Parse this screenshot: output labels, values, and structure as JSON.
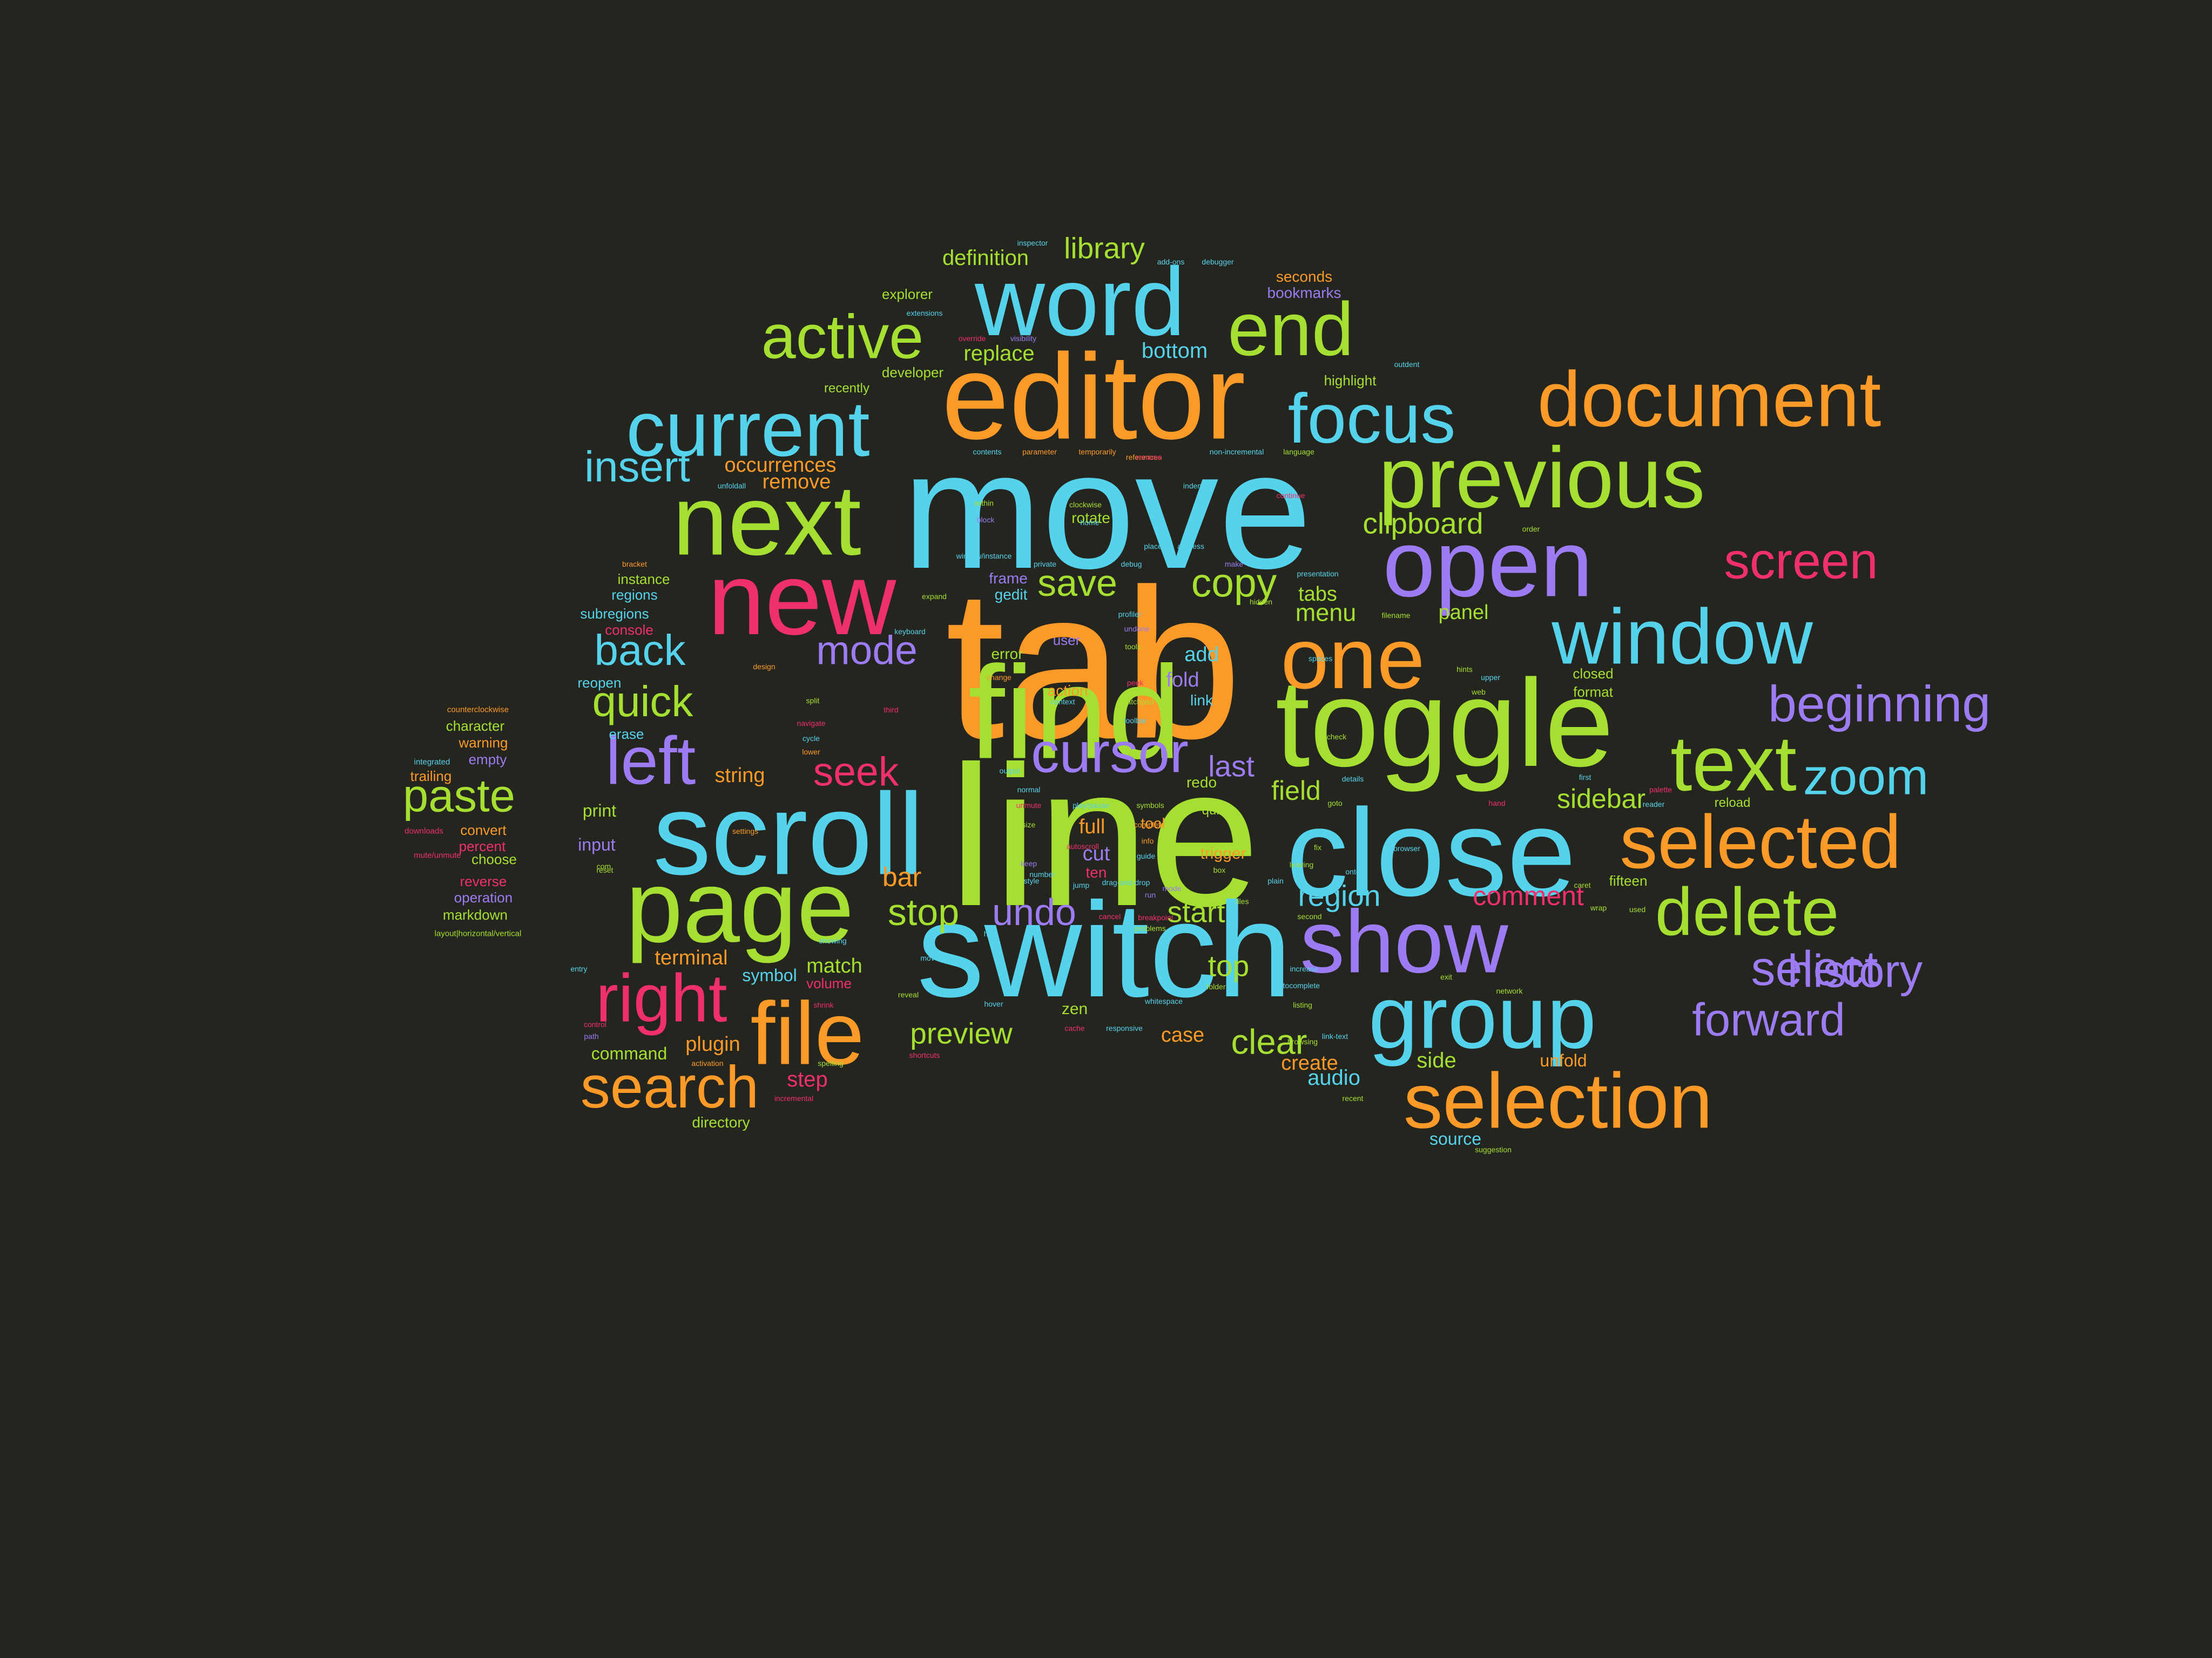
{
  "palette": {
    "background": "#252520",
    "cyan": "#56d3ec",
    "orange": "#fb9a28",
    "lime": "#a5df31",
    "purple": "#9d7bf3",
    "pink": "#f0306c"
  },
  "words": [
    {
      "text": "tab",
      "color": "orange"
    },
    {
      "text": "line",
      "color": "lime"
    },
    {
      "text": "move",
      "color": "cyan"
    },
    {
      "text": "switch",
      "color": "cyan"
    },
    {
      "text": "editor",
      "color": "orange"
    },
    {
      "text": "find",
      "color": "lime"
    },
    {
      "text": "toggle",
      "color": "lime"
    },
    {
      "text": "close",
      "color": "cyan"
    },
    {
      "text": "scroll",
      "color": "cyan"
    },
    {
      "text": "page",
      "color": "lime"
    },
    {
      "text": "new",
      "color": "pink"
    },
    {
      "text": "next",
      "color": "lime"
    },
    {
      "text": "word",
      "color": "cyan"
    },
    {
      "text": "open",
      "color": "purple"
    },
    {
      "text": "one",
      "color": "orange"
    },
    {
      "text": "show",
      "color": "purple"
    },
    {
      "text": "group",
      "color": "cyan"
    },
    {
      "text": "previous",
      "color": "lime"
    },
    {
      "text": "current",
      "color": "cyan"
    },
    {
      "text": "document",
      "color": "orange"
    },
    {
      "text": "selection",
      "color": "orange"
    },
    {
      "text": "window",
      "color": "cyan"
    },
    {
      "text": "selected",
      "color": "orange"
    },
    {
      "text": "text",
      "color": "lime"
    },
    {
      "text": "end",
      "color": "lime"
    },
    {
      "text": "focus",
      "color": "cyan"
    },
    {
      "text": "file",
      "color": "orange"
    },
    {
      "text": "delete",
      "color": "lime"
    },
    {
      "text": "right",
      "color": "pink"
    },
    {
      "text": "search",
      "color": "orange"
    },
    {
      "text": "active",
      "color": "lime"
    },
    {
      "text": "cursor",
      "color": "purple"
    },
    {
      "text": "beginning",
      "color": "purple"
    },
    {
      "text": "left",
      "color": "purple"
    },
    {
      "text": "zoom",
      "color": "cyan"
    },
    {
      "text": "select",
      "color": "purple"
    },
    {
      "text": "history",
      "color": "purple"
    },
    {
      "text": "screen",
      "color": "pink"
    },
    {
      "text": "forward",
      "color": "purple"
    },
    {
      "text": "paste",
      "color": "lime"
    },
    {
      "text": "insert",
      "color": "cyan"
    },
    {
      "text": "quick",
      "color": "lime"
    },
    {
      "text": "back",
      "color": "cyan"
    },
    {
      "text": "seek",
      "color": "pink"
    },
    {
      "text": "copy",
      "color": "lime"
    },
    {
      "text": "mode",
      "color": "purple"
    },
    {
      "text": "save",
      "color": "lime"
    },
    {
      "text": "undo",
      "color": "purple"
    },
    {
      "text": "stop",
      "color": "lime"
    },
    {
      "text": "clipboard",
      "color": "lime"
    },
    {
      "text": "preview",
      "color": "lime"
    },
    {
      "text": "clear",
      "color": "lime"
    },
    {
      "text": "start",
      "color": "lime"
    },
    {
      "text": "library",
      "color": "lime"
    },
    {
      "text": "region",
      "color": "cyan"
    },
    {
      "text": "comment",
      "color": "pink"
    },
    {
      "text": "sidebar",
      "color": "lime"
    },
    {
      "text": "top",
      "color": "lime"
    },
    {
      "text": "field",
      "color": "lime"
    },
    {
      "text": "menu",
      "color": "lime"
    },
    {
      "text": "last",
      "color": "purple"
    },
    {
      "text": "bar",
      "color": "orange"
    },
    {
      "text": "definition",
      "color": "lime"
    },
    {
      "text": "replace",
      "color": "lime"
    },
    {
      "text": "occurrences",
      "color": "orange"
    },
    {
      "text": "remove",
      "color": "orange"
    },
    {
      "text": "bottom",
      "color": "cyan"
    },
    {
      "text": "string",
      "color": "orange"
    },
    {
      "text": "terminal",
      "color": "orange"
    },
    {
      "text": "match",
      "color": "lime"
    },
    {
      "text": "plugin",
      "color": "orange"
    },
    {
      "text": "symbol",
      "color": "cyan"
    },
    {
      "text": "command",
      "color": "lime"
    },
    {
      "text": "step",
      "color": "pink"
    },
    {
      "text": "audio",
      "color": "cyan"
    },
    {
      "text": "side",
      "color": "lime"
    },
    {
      "text": "create",
      "color": "orange"
    },
    {
      "text": "case",
      "color": "orange"
    },
    {
      "text": "cut",
      "color": "purple"
    },
    {
      "text": "full",
      "color": "orange"
    },
    {
      "text": "tabs",
      "color": "lime"
    },
    {
      "text": "panel",
      "color": "lime"
    },
    {
      "text": "add",
      "color": "cyan"
    },
    {
      "text": "fold",
      "color": "purple"
    },
    {
      "text": "trigger",
      "color": "orange"
    },
    {
      "text": "source",
      "color": "cyan"
    },
    {
      "text": "unfold",
      "color": "orange"
    },
    {
      "text": "print",
      "color": "lime"
    },
    {
      "text": "input",
      "color": "purple"
    },
    {
      "text": "erase",
      "color": "cyan"
    },
    {
      "text": "reopen",
      "color": "cyan"
    },
    {
      "text": "volume",
      "color": "pink"
    },
    {
      "text": "directory",
      "color": "lime"
    },
    {
      "text": "zen",
      "color": "lime"
    },
    {
      "text": "action",
      "color": "orange"
    },
    {
      "text": "error",
      "color": "lime"
    },
    {
      "text": "user",
      "color": "purple"
    },
    {
      "text": "gedit",
      "color": "cyan"
    },
    {
      "text": "frame",
      "color": "purple"
    },
    {
      "text": "rotate",
      "color": "lime"
    },
    {
      "text": "redo",
      "color": "lime"
    },
    {
      "text": "tool",
      "color": "orange"
    },
    {
      "text": "link",
      "color": "cyan"
    },
    {
      "text": "quit",
      "color": "lime"
    },
    {
      "text": "ten",
      "color": "pink"
    },
    {
      "text": "seconds",
      "color": "orange"
    },
    {
      "text": "bookmarks",
      "color": "purple"
    },
    {
      "text": "highlight",
      "color": "lime"
    },
    {
      "text": "explorer",
      "color": "lime"
    },
    {
      "text": "developer",
      "color": "lime"
    },
    {
      "text": "recently",
      "color": "lime"
    },
    {
      "text": "instance",
      "color": "lime"
    },
    {
      "text": "regions",
      "color": "cyan"
    },
    {
      "text": "subregions",
      "color": "cyan"
    },
    {
      "text": "console",
      "color": "pink"
    },
    {
      "text": "closed",
      "color": "lime"
    },
    {
      "text": "format",
      "color": "lime"
    },
    {
      "text": "fifteen",
      "color": "lime"
    },
    {
      "text": "reload",
      "color": "lime"
    },
    {
      "text": "character",
      "color": "lime"
    },
    {
      "text": "warning",
      "color": "orange"
    },
    {
      "text": "empty",
      "color": "purple"
    },
    {
      "text": "trailing",
      "color": "orange"
    },
    {
      "text": "convert",
      "color": "orange"
    },
    {
      "text": "percent",
      "color": "pink"
    },
    {
      "text": "choose",
      "color": "lime"
    },
    {
      "text": "reverse",
      "color": "pink"
    },
    {
      "text": "operation",
      "color": "purple"
    },
    {
      "text": "markdown",
      "color": "lime"
    },
    {
      "text": "counterclockwise",
      "color": "orange"
    },
    {
      "text": "integrated",
      "color": "cyan"
    },
    {
      "text": "downloads",
      "color": "pink"
    },
    {
      "text": "mute/unmute",
      "color": "pink"
    },
    {
      "text": "layout|horizontal/vertical",
      "color": "lime"
    },
    {
      "text": "inspector",
      "color": "cyan"
    },
    {
      "text": "extensions",
      "color": "cyan"
    },
    {
      "text": "override",
      "color": "pink"
    },
    {
      "text": "visibility",
      "color": "purple"
    },
    {
      "text": "add-ons",
      "color": "cyan"
    },
    {
      "text": "debugger",
      "color": "cyan"
    },
    {
      "text": "outdent",
      "color": "cyan"
    },
    {
      "text": "contents",
      "color": "cyan"
    },
    {
      "text": "parameter",
      "color": "orange"
    },
    {
      "text": "temporarily",
      "color": "orange"
    },
    {
      "text": "references",
      "color": "orange"
    },
    {
      "text": "rename",
      "color": "pink"
    },
    {
      "text": "non-incremental",
      "color": "cyan"
    },
    {
      "text": "language",
      "color": "lime"
    },
    {
      "text": "unfoldall",
      "color": "cyan"
    },
    {
      "text": "within",
      "color": "lime"
    },
    {
      "text": "matching",
      "color": "cyan"
    },
    {
      "text": "clockwise",
      "color": "lime"
    },
    {
      "text": "indent",
      "color": "cyan"
    },
    {
      "text": "continue",
      "color": "pink"
    },
    {
      "text": "block",
      "color": "purple"
    },
    {
      "text": "home",
      "color": "cyan"
    },
    {
      "text": "place",
      "color": "cyan"
    },
    {
      "text": "address",
      "color": "cyan"
    },
    {
      "text": "order",
      "color": "lime"
    },
    {
      "text": "bracket",
      "color": "orange"
    },
    {
      "text": "window/instance",
      "color": "cyan"
    },
    {
      "text": "private",
      "color": "cyan"
    },
    {
      "text": "debug",
      "color": "cyan"
    },
    {
      "text": "make",
      "color": "purple"
    },
    {
      "text": "presentation",
      "color": "cyan"
    },
    {
      "text": "expand",
      "color": "lime"
    },
    {
      "text": "profiler",
      "color": "cyan"
    },
    {
      "text": "hidden",
      "color": "lime"
    },
    {
      "text": "filename",
      "color": "lime"
    },
    {
      "text": "keyboard",
      "color": "cyan"
    },
    {
      "text": "undone",
      "color": "purple"
    },
    {
      "text": "tools",
      "color": "lime"
    },
    {
      "text": "spaces",
      "color": "cyan"
    },
    {
      "text": "hints",
      "color": "lime"
    },
    {
      "text": "design",
      "color": "orange"
    },
    {
      "text": "change",
      "color": "orange"
    },
    {
      "text": "context",
      "color": "cyan"
    },
    {
      "text": "peek",
      "color": "pink"
    },
    {
      "text": "scratchpad",
      "color": "lime"
    },
    {
      "text": "web",
      "color": "lime"
    },
    {
      "text": "upper",
      "color": "cyan"
    },
    {
      "text": "split",
      "color": "lime"
    },
    {
      "text": "third",
      "color": "pink"
    },
    {
      "text": "navigate",
      "color": "pink"
    },
    {
      "text": "cycle",
      "color": "cyan"
    },
    {
      "text": "lower",
      "color": "orange"
    },
    {
      "text": "toolbar",
      "color": "cyan"
    },
    {
      "text": "check",
      "color": "lime"
    },
    {
      "text": "output",
      "color": "cyan"
    },
    {
      "text": "details",
      "color": "cyan"
    },
    {
      "text": "first",
      "color": "cyan"
    },
    {
      "text": "palette",
      "color": "pink"
    },
    {
      "text": "normal",
      "color": "cyan"
    },
    {
      "text": "unmute",
      "color": "pink"
    },
    {
      "text": "play/pause",
      "color": "cyan"
    },
    {
      "text": "symbols",
      "color": "lime"
    },
    {
      "text": "goto",
      "color": "lime"
    },
    {
      "text": "hand",
      "color": "pink"
    },
    {
      "text": "reader",
      "color": "cyan"
    },
    {
      "text": "size",
      "color": "lime"
    },
    {
      "text": "complete",
      "color": "orange"
    },
    {
      "text": "settings",
      "color": "orange"
    },
    {
      "text": "autoscroll",
      "color": "pink"
    },
    {
      "text": "info",
      "color": "orange"
    },
    {
      "text": "fix",
      "color": "lime"
    },
    {
      "text": "browser",
      "color": "cyan"
    },
    {
      "text": "com",
      "color": "lime"
    },
    {
      "text": "keep",
      "color": "purple"
    },
    {
      "text": "number",
      "color": "cyan"
    },
    {
      "text": "guide",
      "color": "cyan"
    },
    {
      "text": "leaving",
      "color": "lime"
    },
    {
      "text": "onto",
      "color": "cyan"
    },
    {
      "text": "plain",
      "color": "cyan"
    },
    {
      "text": "reset",
      "color": "lime"
    },
    {
      "text": "style",
      "color": "cyan"
    },
    {
      "text": "jump",
      "color": "cyan"
    },
    {
      "text": "drag-and-drop",
      "color": "cyan"
    },
    {
      "text": "mode",
      "color": "purple"
    },
    {
      "text": "run",
      "color": "purple"
    },
    {
      "text": "box",
      "color": "lime"
    },
    {
      "text": "files",
      "color": "lime"
    },
    {
      "text": "caret",
      "color": "lime"
    },
    {
      "text": "wrap",
      "color": "lime"
    },
    {
      "text": "used",
      "color": "lime"
    },
    {
      "text": "second",
      "color": "lime"
    },
    {
      "text": "cancel",
      "color": "pink"
    },
    {
      "text": "breakpoint",
      "color": "pink"
    },
    {
      "text": "problems",
      "color": "lime"
    },
    {
      "text": "showing",
      "color": "cyan"
    },
    {
      "text": "hide",
      "color": "cyan"
    },
    {
      "text": "entry",
      "color": "cyan"
    },
    {
      "text": "moves",
      "color": "cyan"
    },
    {
      "text": "increase",
      "color": "cyan"
    },
    {
      "text": "exit",
      "color": "lime"
    },
    {
      "text": "network",
      "color": "lime"
    },
    {
      "text": "reveal",
      "color": "lime"
    },
    {
      "text": "folder",
      "color": "lime"
    },
    {
      "text": "autocomplete",
      "color": "cyan"
    },
    {
      "text": "whitespace",
      "color": "cyan"
    },
    {
      "text": "hover",
      "color": "cyan"
    },
    {
      "text": "listing",
      "color": "lime"
    },
    {
      "text": "control",
      "color": "pink"
    },
    {
      "text": "path",
      "color": "purple"
    },
    {
      "text": "shrink",
      "color": "pink"
    },
    {
      "text": "cache",
      "color": "pink"
    },
    {
      "text": "responsive",
      "color": "cyan"
    },
    {
      "text": "link-text",
      "color": "cyan"
    },
    {
      "text": "browsing",
      "color": "lime"
    },
    {
      "text": "shortcuts",
      "color": "pink"
    },
    {
      "text": "activation",
      "color": "orange"
    },
    {
      "text": "spelling",
      "color": "lime"
    },
    {
      "text": "recent",
      "color": "lime"
    },
    {
      "text": "incremental",
      "color": "pink"
    },
    {
      "text": "suggestion",
      "color": "lime"
    },
    {
      "text": "decrease",
      "color": "cyan"
    },
    {
      "text": "location",
      "color": "orange"
    },
    {
      "text": "bookmark",
      "color": "cyan"
    },
    {
      "text": "prompt/terminal",
      "color": "orange"
    }
  ]
}
